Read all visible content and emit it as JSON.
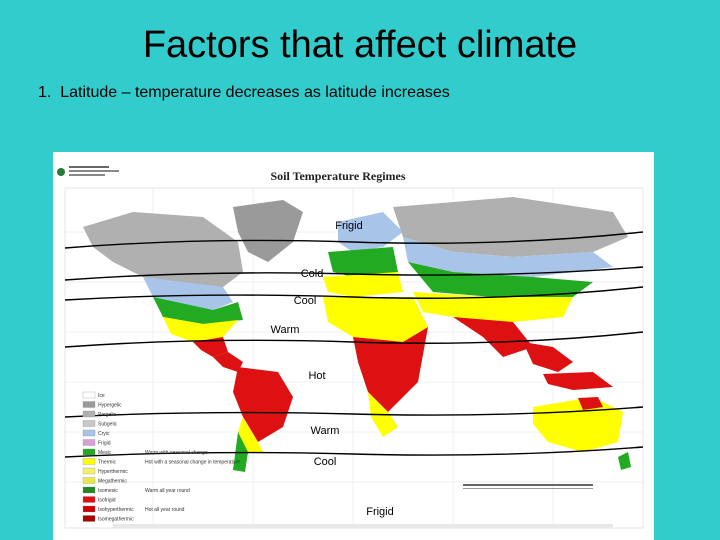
{
  "slide": {
    "title": "Factors that affect climate",
    "bullet_number": "1.",
    "bullet_text": "Latitude – temperature decreases as latitude increases"
  },
  "map": {
    "title": "Soil Temperature Regimes",
    "band_labels": {
      "frigid_north": "Frigid",
      "cold": "Cold",
      "cool_north": "Cool",
      "warm_north": "Warm",
      "hot": "Hot",
      "warm_south": "Warm",
      "cool_south": "Cool",
      "frigid_south": "Frigid"
    },
    "legend": [
      {
        "label": "Ice",
        "color": "#ffffff"
      },
      {
        "label": "Hypergelic",
        "color": "#9a9a9a"
      },
      {
        "label": "Pergelic",
        "color": "#b0b0b0"
      },
      {
        "label": "Subgelic",
        "color": "#c8c8c8"
      },
      {
        "label": "Cryic",
        "color": "#a8c4e8"
      },
      {
        "label": "Frigid",
        "color": "#d8a0d8"
      },
      {
        "label": "Mesic",
        "color": "#22aa22"
      },
      {
        "label": "Thermic",
        "color": "#ffff00"
      },
      {
        "label": "Hyperthermic",
        "color": "#f2f26a"
      },
      {
        "label": "Megathermic",
        "color": "#e8e84a"
      },
      {
        "label": "Isomesic",
        "color": "#228822"
      },
      {
        "label": "Isofrigid",
        "color": "#dd1111"
      },
      {
        "label": "Isohyperthermic",
        "color": "#cc0000"
      },
      {
        "label": "Isomegathermic",
        "color": "#aa0000"
      }
    ],
    "legend_notes": {
      "mesic": "Warm with seasonal change",
      "hot_season": "Hot with a seasonal change in temperature",
      "isomesic": "Warm all year round",
      "hot_round": "Hot all year round"
    }
  },
  "colors": {
    "background": "#33cccc",
    "hot": "#dd1111",
    "warm": "#ffff00",
    "cool": "#22aa22",
    "cold": "#a8c4e8",
    "frigid": "#aaaaaa"
  }
}
